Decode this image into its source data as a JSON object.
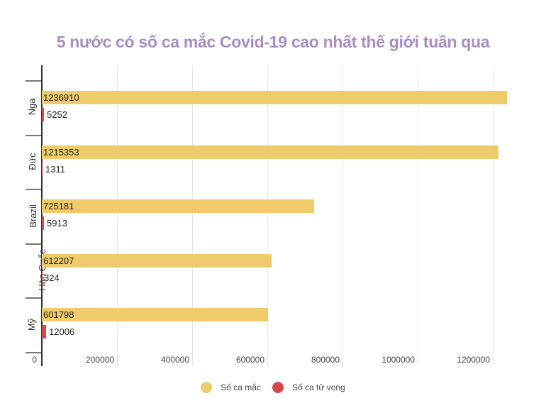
{
  "title": "5 nước có số ca mắc Covid-19 cao nhất thế giới tuần qua",
  "colors": {
    "cases": "#EFCB6B",
    "deaths": "#D9474B",
    "title": "#A88DC4"
  },
  "legend": [
    {
      "label": "Số ca mắc",
      "color": "#EFCB6B"
    },
    {
      "label": "Số ca tử vong",
      "color": "#D9474B"
    }
  ],
  "x_ticks": [
    "0",
    "200000",
    "400000",
    "600000",
    "800000",
    "1000000",
    "1200000"
  ],
  "categories": [
    "Nga",
    "Đức",
    "Brazil",
    "Hàn Quốc",
    "Mỹ"
  ],
  "cases_labels": [
    "1236910",
    "1215353",
    "725181",
    "612207",
    "601798"
  ],
  "deaths_labels": [
    "5252",
    "1311",
    "5913",
    "324",
    "12006"
  ],
  "chart_data": {
    "type": "bar",
    "orientation": "horizontal",
    "title": "5 nước có số ca mắc Covid-19 cao nhất thế giới tuần qua",
    "categories": [
      "Nga",
      "Đức",
      "Brazil",
      "Hàn Quốc",
      "Mỹ"
    ],
    "series": [
      {
        "name": "Số ca mắc",
        "color": "#EFCB6B",
        "values": [
          1236910,
          1215353,
          725181,
          612207,
          601798
        ]
      },
      {
        "name": "Số ca tử vong",
        "color": "#D9474B",
        "values": [
          5252,
          1311,
          5913,
          324,
          12006
        ]
      }
    ],
    "xlabel": "",
    "ylabel": "",
    "xlim": [
      0,
      1250000
    ],
    "x_ticks": [
      0,
      200000,
      400000,
      600000,
      800000,
      1000000,
      1200000
    ],
    "grid": true,
    "legend_position": "bottom"
  }
}
